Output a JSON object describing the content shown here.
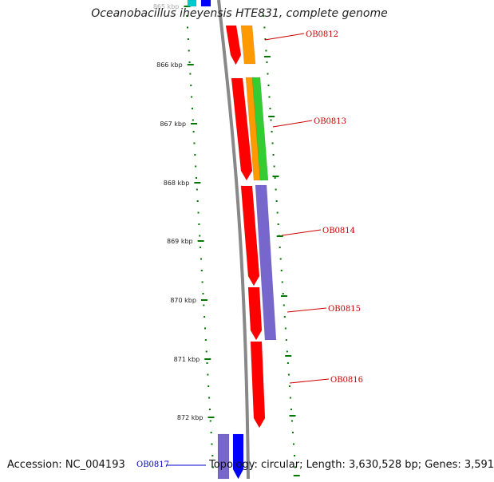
{
  "title": "Oceanobacillus iheyensis HTE831, complete genome",
  "footer": {
    "accession": "Accession: NC_004193",
    "summary": "Topology: circular; Length: 3,630,528 bp; Genes: 3,591"
  },
  "colors": {
    "red": "#ff0000",
    "orange": "#ff9900",
    "green": "#33cc33",
    "purple": "#7766cc",
    "blue": "#0000ff",
    "cyan": "#00cccc",
    "tick_green": "#007700",
    "label_red": "#cc0000",
    "label_blue": "#0000cc",
    "backbone": "#888888"
  },
  "axis": {
    "unit": "kbp",
    "ticks": [
      "865 kbp",
      "866 kbp",
      "867 kbp",
      "868 kbp",
      "869 kbp",
      "870 kbp",
      "871 kbp",
      "872 kbp"
    ]
  },
  "gene_labels": [
    {
      "name": "OB0812",
      "color": "red"
    },
    {
      "name": "OB0813",
      "color": "red"
    },
    {
      "name": "OB0814",
      "color": "red"
    },
    {
      "name": "OB0815",
      "color": "red"
    },
    {
      "name": "OB0816",
      "color": "red"
    },
    {
      "name": "OB0817",
      "color": "blue"
    }
  ]
}
